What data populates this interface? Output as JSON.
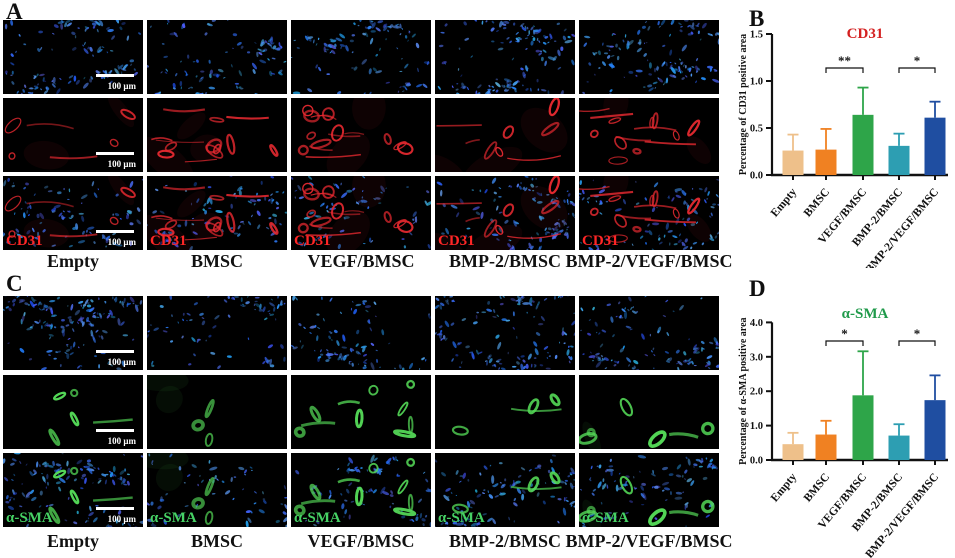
{
  "figure": {
    "panel_a_label": "A",
    "panel_b_label": "B",
    "panel_c_label": "C",
    "panel_d_label": "D"
  },
  "groups": [
    "Empty",
    "BMSC",
    "VEGF/BMSC",
    "BMP-2/BMSC",
    "BMP-2/VEGF/BMSC"
  ],
  "micrographs": {
    "scale_bar_label": "100 μm",
    "panels": [
      {
        "id": "A",
        "marker": "CD31",
        "marker_text_color": "#ff2626",
        "stain_color": "#e62930",
        "rows": [
          "nuclei",
          "marker",
          "merge"
        ],
        "vessel_density": [
          0.3,
          0.8,
          1.0,
          0.45,
          0.85
        ],
        "nuclei_density": [
          0.75,
          0.65,
          0.6,
          0.85,
          0.8
        ]
      },
      {
        "id": "C",
        "marker": "α-SMA",
        "marker_text_color": "#46d164",
        "stain_color": "#54d957",
        "rows": [
          "nuclei",
          "marker",
          "merge"
        ],
        "vessel_density": [
          0.45,
          0.22,
          1.0,
          0.3,
          0.55
        ],
        "nuclei_density": [
          1.0,
          0.5,
          0.6,
          0.9,
          0.8
        ]
      }
    ]
  },
  "chart_data": [
    {
      "panel_label": "B",
      "type": "bar",
      "title": "CD31",
      "title_color": "#d42020",
      "xlabel": "",
      "ylabel": "Percentage of CD31 positive area",
      "categories": [
        "Empty",
        "BMSC",
        "VEGF/BMSC",
        "BMP-2/BMSC",
        "BMP-2/VEGF/BMSC"
      ],
      "values": [
        0.26,
        0.27,
        0.64,
        0.31,
        0.61
      ],
      "errors": [
        0.17,
        0.22,
        0.29,
        0.13,
        0.17
      ],
      "bar_colors": [
        "#eec08a",
        "#f08122",
        "#2ea549",
        "#2d9eb2",
        "#1f4ea1"
      ],
      "ylim": [
        0,
        1.5
      ],
      "yticks": [
        0,
        0.5,
        1.0,
        1.5
      ],
      "ytick_labels": [
        "0.0",
        "0.5",
        "1.0",
        "1.5"
      ],
      "grid": false,
      "legend": false,
      "significance": [
        {
          "from": 1,
          "to": 2,
          "label": "**"
        },
        {
          "from": 3,
          "to": 4,
          "label": "*"
        }
      ]
    },
    {
      "panel_label": "D",
      "type": "bar",
      "title": "α-SMA",
      "title_color": "#1f9a4a",
      "xlabel": "",
      "ylabel": "Percentage of α-SMA positive area",
      "categories": [
        "Empty",
        "BMSC",
        "VEGF/BMSC",
        "BMP-2/BMSC",
        "BMP-2/VEGF/BMSC"
      ],
      "values": [
        0.46,
        0.74,
        1.88,
        0.71,
        1.74
      ],
      "errors": [
        0.33,
        0.4,
        1.28,
        0.33,
        0.72
      ],
      "bar_colors": [
        "#eec08a",
        "#f08122",
        "#2ea549",
        "#2d9eb2",
        "#1f4ea1"
      ],
      "ylim": [
        0,
        4.0
      ],
      "yticks": [
        0,
        1.0,
        2.0,
        3.0,
        4.0
      ],
      "ytick_labels": [
        "0.0",
        "1.0",
        "2.0",
        "3.0",
        "4.0"
      ],
      "grid": false,
      "legend": false,
      "significance": [
        {
          "from": 1,
          "to": 2,
          "label": "*"
        },
        {
          "from": 3,
          "to": 4,
          "label": "*"
        }
      ]
    }
  ]
}
